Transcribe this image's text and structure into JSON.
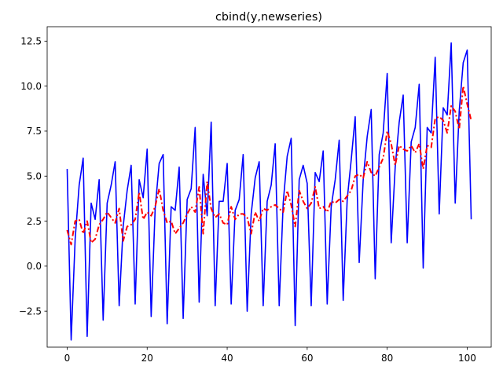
{
  "chart_data": {
    "type": "line",
    "title": "cbind(y,newseries)",
    "xlabel": "",
    "ylabel": "",
    "xlim": [
      -5,
      106
    ],
    "ylim": [
      -4.5,
      13.3
    ],
    "xticks": [
      0,
      20,
      40,
      60,
      80,
      100
    ],
    "xtick_labels": [
      "0",
      "20",
      "40",
      "60",
      "80",
      "100"
    ],
    "yticks": [
      -2.5,
      0.0,
      2.5,
      5.0,
      7.5,
      10.0,
      12.5
    ],
    "ytick_labels": [
      "−2.5",
      "0.0",
      "2.5",
      "5.0",
      "7.5",
      "10.0",
      "12.5"
    ],
    "grid": false,
    "series": [
      {
        "color": "#0000ff",
        "linestyle": "solid",
        "x": [
          0,
          1,
          2,
          3,
          4,
          5,
          6,
          7,
          8,
          9,
          10,
          11,
          12,
          13,
          14,
          15,
          16,
          17,
          18,
          19,
          20,
          21,
          22,
          23,
          24,
          25,
          26,
          27,
          28,
          29,
          30,
          31,
          32,
          33,
          34,
          35,
          36,
          37,
          38,
          39,
          40,
          41,
          42,
          43,
          44,
          45,
          46,
          47,
          48,
          49,
          50,
          51,
          52,
          53,
          54,
          55,
          56,
          57,
          58,
          59,
          60,
          61,
          62,
          63,
          64,
          65,
          66,
          67,
          68,
          69,
          70,
          71,
          72,
          73,
          74,
          75,
          76,
          77,
          78,
          79,
          80,
          81,
          82,
          83,
          84,
          85,
          86,
          87,
          88,
          89,
          90,
          91,
          92,
          93,
          94,
          95,
          96,
          97,
          98,
          99,
          100,
          101
        ],
        "values": [
          5.4,
          -4.1,
          1.5,
          4.5,
          6.0,
          -3.9,
          3.5,
          2.6,
          4.8,
          -3.0,
          3.5,
          4.5,
          5.8,
          -2.2,
          2.2,
          4.2,
          5.6,
          -2.1,
          4.8,
          3.8,
          6.5,
          -2.8,
          3.2,
          5.7,
          6.2,
          -3.2,
          3.3,
          3.1,
          5.5,
          -2.9,
          3.7,
          4.3,
          7.7,
          -2.0,
          5.1,
          2.8,
          8.0,
          -2.2,
          3.6,
          3.6,
          5.7,
          -2.1,
          3.1,
          3.7,
          6.2,
          -2.5,
          2.9,
          4.9,
          5.8,
          -2.2,
          3.6,
          4.5,
          6.8,
          -2.2,
          3.5,
          6.1,
          7.1,
          -3.3,
          4.8,
          5.6,
          4.6,
          -2.2,
          5.2,
          4.7,
          6.4,
          -2.1,
          3.3,
          4.8,
          7.0,
          -1.9,
          3.7,
          5.9,
          8.3,
          0.2,
          4.8,
          7.2,
          8.7,
          -0.7,
          6.2,
          7.4,
          10.7,
          1.3,
          5.5,
          8.0,
          9.5,
          1.3,
          6.9,
          7.7,
          10.1,
          -0.1,
          7.7,
          7.4,
          11.6,
          2.9,
          8.8,
          8.4,
          12.4,
          3.5,
          8.6,
          11.3,
          12.0,
          2.6
        ]
      },
      {
        "color": "#ff0000",
        "linestyle": "dashdot",
        "x": [
          0,
          1,
          2,
          3,
          4,
          5,
          6,
          7,
          8,
          9,
          10,
          11,
          12,
          13,
          14,
          15,
          16,
          17,
          18,
          19,
          20,
          21,
          22,
          23,
          24,
          25,
          26,
          27,
          28,
          29,
          30,
          31,
          32,
          33,
          34,
          35,
          36,
          37,
          38,
          39,
          40,
          41,
          42,
          43,
          44,
          45,
          46,
          47,
          48,
          49,
          50,
          51,
          52,
          53,
          54,
          55,
          56,
          57,
          58,
          59,
          60,
          61,
          62,
          63,
          64,
          65,
          66,
          67,
          68,
          69,
          70,
          71,
          72,
          73,
          74,
          75,
          76,
          77,
          78,
          79,
          80,
          81,
          82,
          83,
          84,
          85,
          86,
          87,
          88,
          89,
          90,
          91,
          92,
          93,
          94,
          95,
          96,
          97,
          98,
          99,
          100,
          101
        ],
        "values": [
          2.0,
          1.2,
          2.5,
          2.6,
          1.8,
          2.5,
          1.3,
          1.5,
          2.3,
          2.6,
          3.0,
          2.7,
          2.4,
          3.2,
          1.4,
          2.2,
          2.3,
          2.6,
          4.1,
          2.6,
          3.0,
          2.8,
          3.3,
          4.3,
          3.1,
          2.4,
          2.5,
          1.8,
          2.1,
          2.4,
          2.9,
          3.3,
          3.0,
          4.4,
          1.8,
          4.7,
          3.2,
          2.7,
          2.9,
          2.4,
          2.3,
          3.3,
          2.6,
          2.9,
          2.9,
          2.7,
          1.8,
          3.0,
          2.5,
          3.2,
          3.1,
          3.3,
          3.4,
          3.2,
          3.0,
          4.2,
          3.4,
          2.2,
          4.2,
          3.6,
          3.2,
          3.5,
          4.4,
          3.2,
          3.3,
          3.0,
          3.6,
          3.5,
          3.7,
          3.6,
          3.9,
          4.2,
          5.0,
          5.1,
          4.9,
          5.8,
          5.2,
          5.0,
          5.5,
          6.0,
          7.5,
          6.8,
          5.6,
          6.7,
          6.5,
          6.4,
          6.7,
          6.3,
          6.8,
          5.4,
          6.7,
          6.6,
          8.2,
          8.3,
          8.1,
          7.4,
          8.9,
          8.6,
          7.6,
          10.0,
          9.0,
          8.1
        ]
      }
    ]
  }
}
